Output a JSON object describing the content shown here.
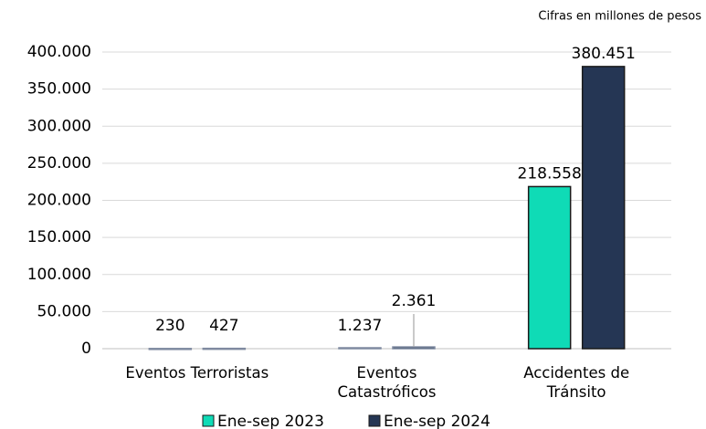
{
  "chart_data": {
    "type": "bar",
    "annotation": "Cifras en millones de pesos",
    "categories": [
      "Eventos Terroristas",
      "Eventos Catastróficos",
      "Accidentes de Tránsito"
    ],
    "series": [
      {
        "name": "Ene-sep 2023",
        "color": "#0fdbb6",
        "values": [
          230,
          1237,
          218558
        ],
        "value_labels": [
          "230",
          "1.237",
          "218.558"
        ]
      },
      {
        "name": "Ene-sep 2024",
        "color": "#253654",
        "values": [
          427,
          2361,
          380451
        ],
        "value_labels": [
          "427",
          "2.361",
          "380.451"
        ]
      }
    ],
    "ylim": [
      0,
      400000
    ],
    "yticks": [
      0,
      {
        "value": 50000,
        "label": "50.000"
      },
      {
        "value": 100000,
        "label": "100.000"
      },
      {
        "value": 150000,
        "label": "150.000"
      },
      {
        "value": 200000,
        "label": "200.000"
      },
      {
        "value": 250000,
        "label": "250.000"
      },
      {
        "value": 300000,
        "label": "300.000"
      },
      {
        "value": 350000,
        "label": "350.000"
      },
      {
        "value": 400000,
        "label": "400.000"
      }
    ],
    "grid": true,
    "legend": "bottom"
  }
}
